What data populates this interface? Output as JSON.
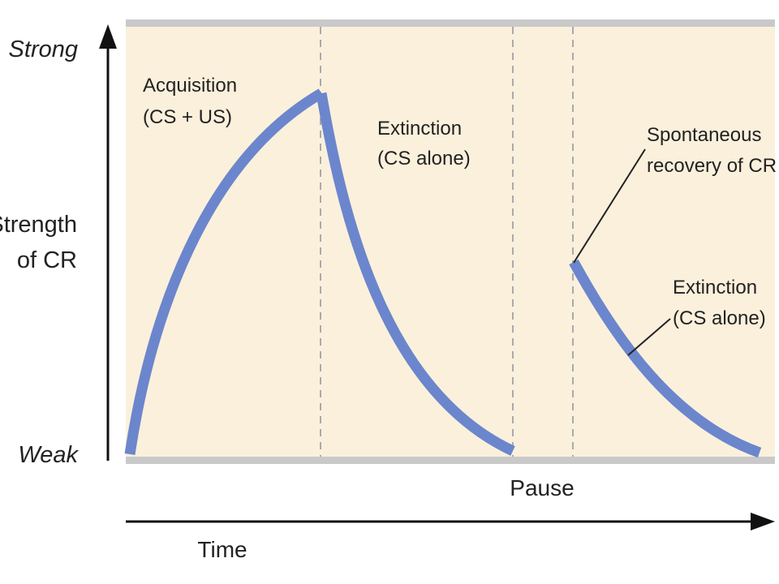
{
  "colors": {
    "background": "#ffffff",
    "panel": "#fbf0dc",
    "band": "#c9c9c9",
    "divider": "#aaaaaa",
    "curve": "#6b86cc",
    "text": "#222222"
  },
  "y_axis": {
    "top_label": "Strong",
    "bottom_label": "Weak",
    "title_line1": "Strength",
    "title_line2": "of CR"
  },
  "x_axis": {
    "title": "Time",
    "pause_label": "Pause"
  },
  "phases": {
    "acquisition": {
      "line1": "Acquisition",
      "line2": "(CS + US)"
    },
    "extinction_1": {
      "line1": "Extinction",
      "line2": "(CS alone)"
    },
    "spontaneous_recovery": {
      "line1": "Spontaneous",
      "line2": "recovery of CR"
    },
    "extinction_2": {
      "line1": "Extinction",
      "line2": "(CS alone)"
    }
  },
  "icons": [
    "y-axis-arrow-icon",
    "time-arrow-icon"
  ]
}
